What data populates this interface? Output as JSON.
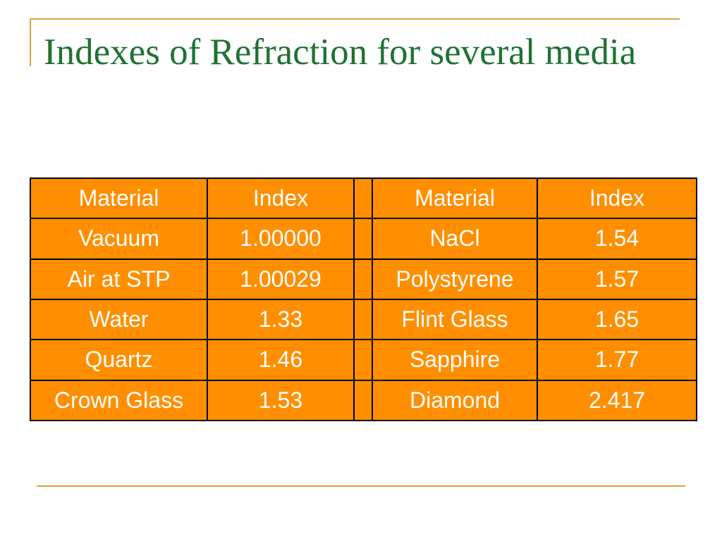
{
  "slide": {
    "title": "Indexes of Refraction for several media"
  },
  "table": {
    "headers": [
      "Material",
      "Index",
      "",
      "Material",
      "Index"
    ],
    "rows": [
      {
        "left_material": "Vacuum",
        "left_index": "1.00000",
        "right_material": "NaCl",
        "right_index": "1.54"
      },
      {
        "left_material": "Air at STP",
        "left_index": "1.00029",
        "right_material": "Polystyrene",
        "right_index": "1.57"
      },
      {
        "left_material": "Water",
        "left_index": "1.33",
        "right_material": "Flint Glass",
        "right_index": "1.65"
      },
      {
        "left_material": "Quartz",
        "left_index": "1.46",
        "right_material": "Sapphire",
        "right_index": "1.77"
      },
      {
        "left_material": "Crown Glass",
        "left_index": "1.53",
        "right_material": "Diamond",
        "right_index": "2.417"
      }
    ]
  },
  "colors": {
    "title_green": "#1f7232",
    "cell_orange": "#ff8f00",
    "rule_gold": "#d7a43d",
    "cell_text": "#ffffff",
    "border": "#000000"
  }
}
